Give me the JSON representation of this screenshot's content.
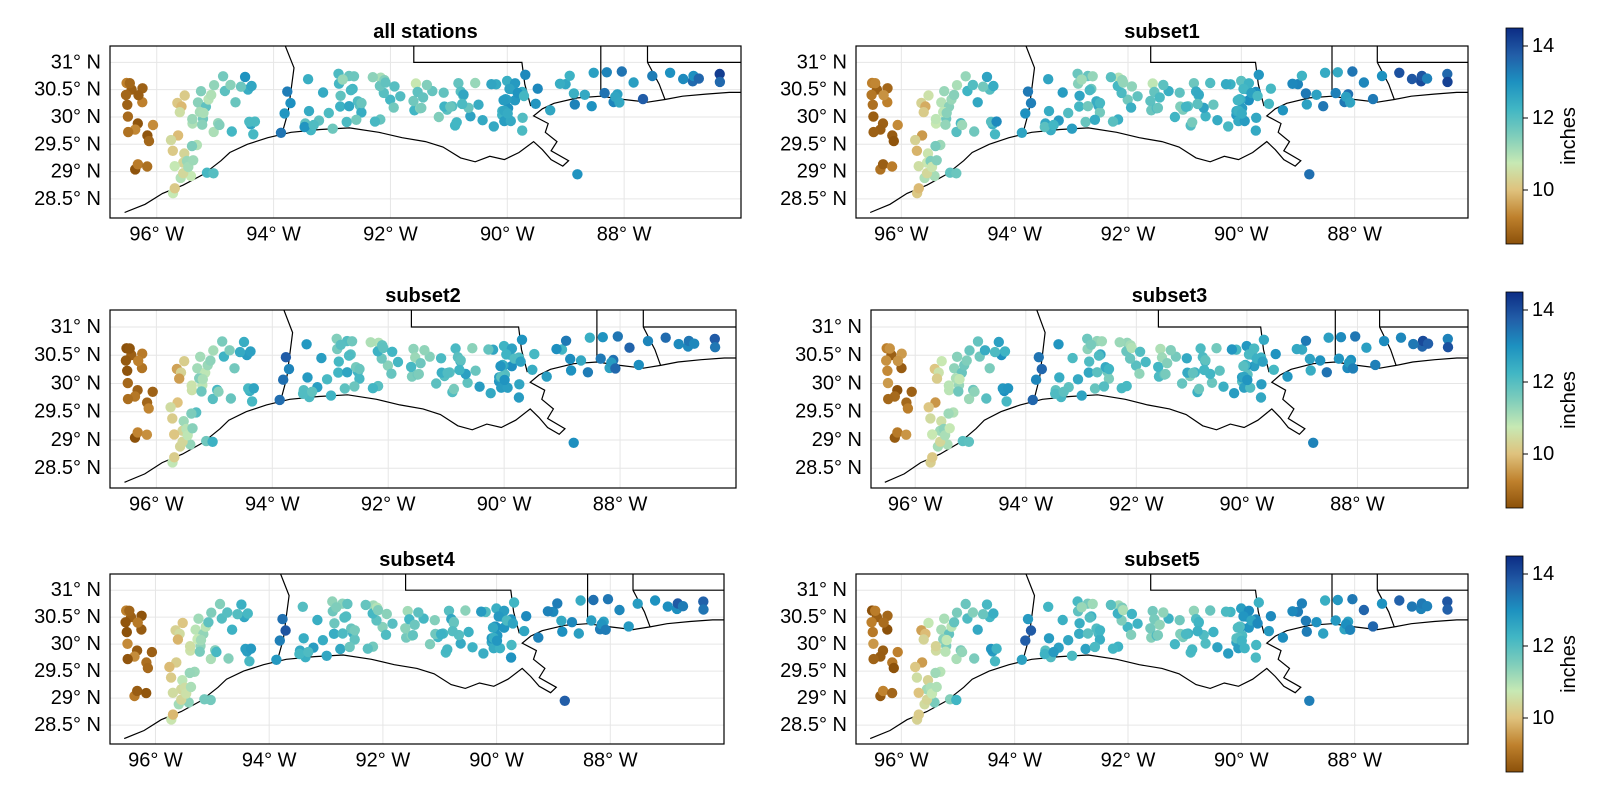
{
  "colors": {
    "scale": [
      "#8c510a",
      "#bf812d",
      "#dfc27d",
      "#c7e9b4",
      "#7fcdbb",
      "#41b6c4",
      "#1d91c0",
      "#225ea8",
      "#0c2c84"
    ],
    "coast": "#000000",
    "grid": "#e6e6e6",
    "frame": "#000000"
  },
  "chart_data": [
    {
      "type": "scatter",
      "title": "all stations",
      "colorbar": false,
      "seed": 11,
      "xlim": [
        -96.8,
        -86.0
      ],
      "ylim": [
        28.15,
        31.3
      ],
      "xticks": [
        {
          "v": -96,
          "label": "96° W"
        },
        {
          "v": -94,
          "label": "94° W"
        },
        {
          "v": -92,
          "label": "92° W"
        },
        {
          "v": -90,
          "label": "90° W"
        },
        {
          "v": -88,
          "label": "88° W"
        }
      ],
      "yticks": [
        {
          "v": 31.0,
          "label": "31° N"
        },
        {
          "v": 30.5,
          "label": "30.5° N"
        },
        {
          "v": 30.0,
          "label": "30° N"
        },
        {
          "v": 29.5,
          "label": "29.5° N"
        },
        {
          "v": 29.0,
          "label": "29° N"
        },
        {
          "v": 28.5,
          "label": "28.5° N"
        }
      ]
    },
    {
      "type": "scatter",
      "title": "subset1",
      "colorbar": true,
      "colorbar_label": "inches",
      "cticks": [
        {
          "v": 14,
          "label": "14"
        },
        {
          "v": 12,
          "label": "12"
        },
        {
          "v": 10,
          "label": "10"
        }
      ],
      "clim": [
        8.5,
        14.5
      ],
      "seed": 23,
      "xlim": [
        -96.8,
        -86.0
      ],
      "ylim": [
        28.15,
        31.3
      ],
      "xticks": [
        {
          "v": -96,
          "label": "96° W"
        },
        {
          "v": -94,
          "label": "94° W"
        },
        {
          "v": -92,
          "label": "92° W"
        },
        {
          "v": -90,
          "label": "90° W"
        },
        {
          "v": -88,
          "label": "88° W"
        }
      ],
      "yticks": [
        {
          "v": 31.0,
          "label": "31° N"
        },
        {
          "v": 30.5,
          "label": "30.5° N"
        },
        {
          "v": 30.0,
          "label": "30° N"
        },
        {
          "v": 29.5,
          "label": "29.5° N"
        },
        {
          "v": 29.0,
          "label": "29° N"
        },
        {
          "v": 28.5,
          "label": "28.5° N"
        }
      ]
    },
    {
      "type": "scatter",
      "title": "subset2",
      "colorbar": false,
      "seed": 37,
      "xlim": [
        -96.8,
        -86.0
      ],
      "ylim": [
        28.15,
        31.3
      ],
      "xticks": [
        {
          "v": -96,
          "label": "96° W"
        },
        {
          "v": -94,
          "label": "94° W"
        },
        {
          "v": -92,
          "label": "92° W"
        },
        {
          "v": -90,
          "label": "90° W"
        },
        {
          "v": -88,
          "label": "88° W"
        }
      ],
      "yticks": [
        {
          "v": 31.0,
          "label": "31° N"
        },
        {
          "v": 30.5,
          "label": "30.5° N"
        },
        {
          "v": 30.0,
          "label": "30° N"
        },
        {
          "v": 29.5,
          "label": "29.5° N"
        },
        {
          "v": 29.0,
          "label": "29° N"
        },
        {
          "v": 28.5,
          "label": "28.5° N"
        }
      ]
    },
    {
      "type": "scatter",
      "title": "subset3",
      "colorbar": true,
      "colorbar_label": "inches",
      "cticks": [
        {
          "v": 14,
          "label": "14"
        },
        {
          "v": 12,
          "label": "12"
        },
        {
          "v": 10,
          "label": "10"
        }
      ],
      "clim": [
        8.5,
        14.5
      ],
      "seed": 41,
      "xlim": [
        -96.8,
        -86.0
      ],
      "ylim": [
        28.15,
        31.3
      ],
      "xticks": [
        {
          "v": -96,
          "label": "96° W"
        },
        {
          "v": -94,
          "label": "94° W"
        },
        {
          "v": -92,
          "label": "92° W"
        },
        {
          "v": -90,
          "label": "90° W"
        },
        {
          "v": -88,
          "label": "88° W"
        }
      ],
      "yticks": [
        {
          "v": 31.0,
          "label": "31° N"
        },
        {
          "v": 30.5,
          "label": "30.5° N"
        },
        {
          "v": 30.0,
          "label": "30° N"
        },
        {
          "v": 29.5,
          "label": "29.5° N"
        },
        {
          "v": 29.0,
          "label": "29° N"
        },
        {
          "v": 28.5,
          "label": "28.5° N"
        }
      ]
    },
    {
      "type": "scatter",
      "title": "subset4",
      "colorbar": false,
      "seed": 53,
      "xlim": [
        -96.8,
        -86.0
      ],
      "ylim": [
        28.15,
        31.3
      ],
      "xticks": [
        {
          "v": -96,
          "label": "96° W"
        },
        {
          "v": -94,
          "label": "94° W"
        },
        {
          "v": -92,
          "label": "92° W"
        },
        {
          "v": -90,
          "label": "90° W"
        },
        {
          "v": -88,
          "label": "88° W"
        }
      ],
      "yticks": [
        {
          "v": 31.0,
          "label": "31° N"
        },
        {
          "v": 30.5,
          "label": "30.5° N"
        },
        {
          "v": 30.0,
          "label": "30° N"
        },
        {
          "v": 29.5,
          "label": "29.5° N"
        },
        {
          "v": 29.0,
          "label": "29° N"
        },
        {
          "v": 28.5,
          "label": "28.5° N"
        }
      ]
    },
    {
      "type": "scatter",
      "title": "subset5",
      "colorbar": true,
      "colorbar_label": "inches",
      "cticks": [
        {
          "v": 14,
          "label": "14"
        },
        {
          "v": 12,
          "label": "12"
        },
        {
          "v": 10,
          "label": "10"
        }
      ],
      "clim": [
        8.5,
        14.5
      ],
      "seed": 67,
      "xlim": [
        -96.8,
        -86.0
      ],
      "ylim": [
        28.15,
        31.3
      ],
      "xticks": [
        {
          "v": -96,
          "label": "96° W"
        },
        {
          "v": -94,
          "label": "94° W"
        },
        {
          "v": -92,
          "label": "92° W"
        },
        {
          "v": -90,
          "label": "90° W"
        },
        {
          "v": -88,
          "label": "88° W"
        }
      ],
      "yticks": [
        {
          "v": 31.0,
          "label": "31° N"
        },
        {
          "v": 30.5,
          "label": "30.5° N"
        },
        {
          "v": 30.0,
          "label": "30° N"
        },
        {
          "v": 29.5,
          "label": "29.5° N"
        },
        {
          "v": 29.0,
          "label": "29° N"
        },
        {
          "v": 28.5,
          "label": "28.5° N"
        }
      ]
    }
  ]
}
